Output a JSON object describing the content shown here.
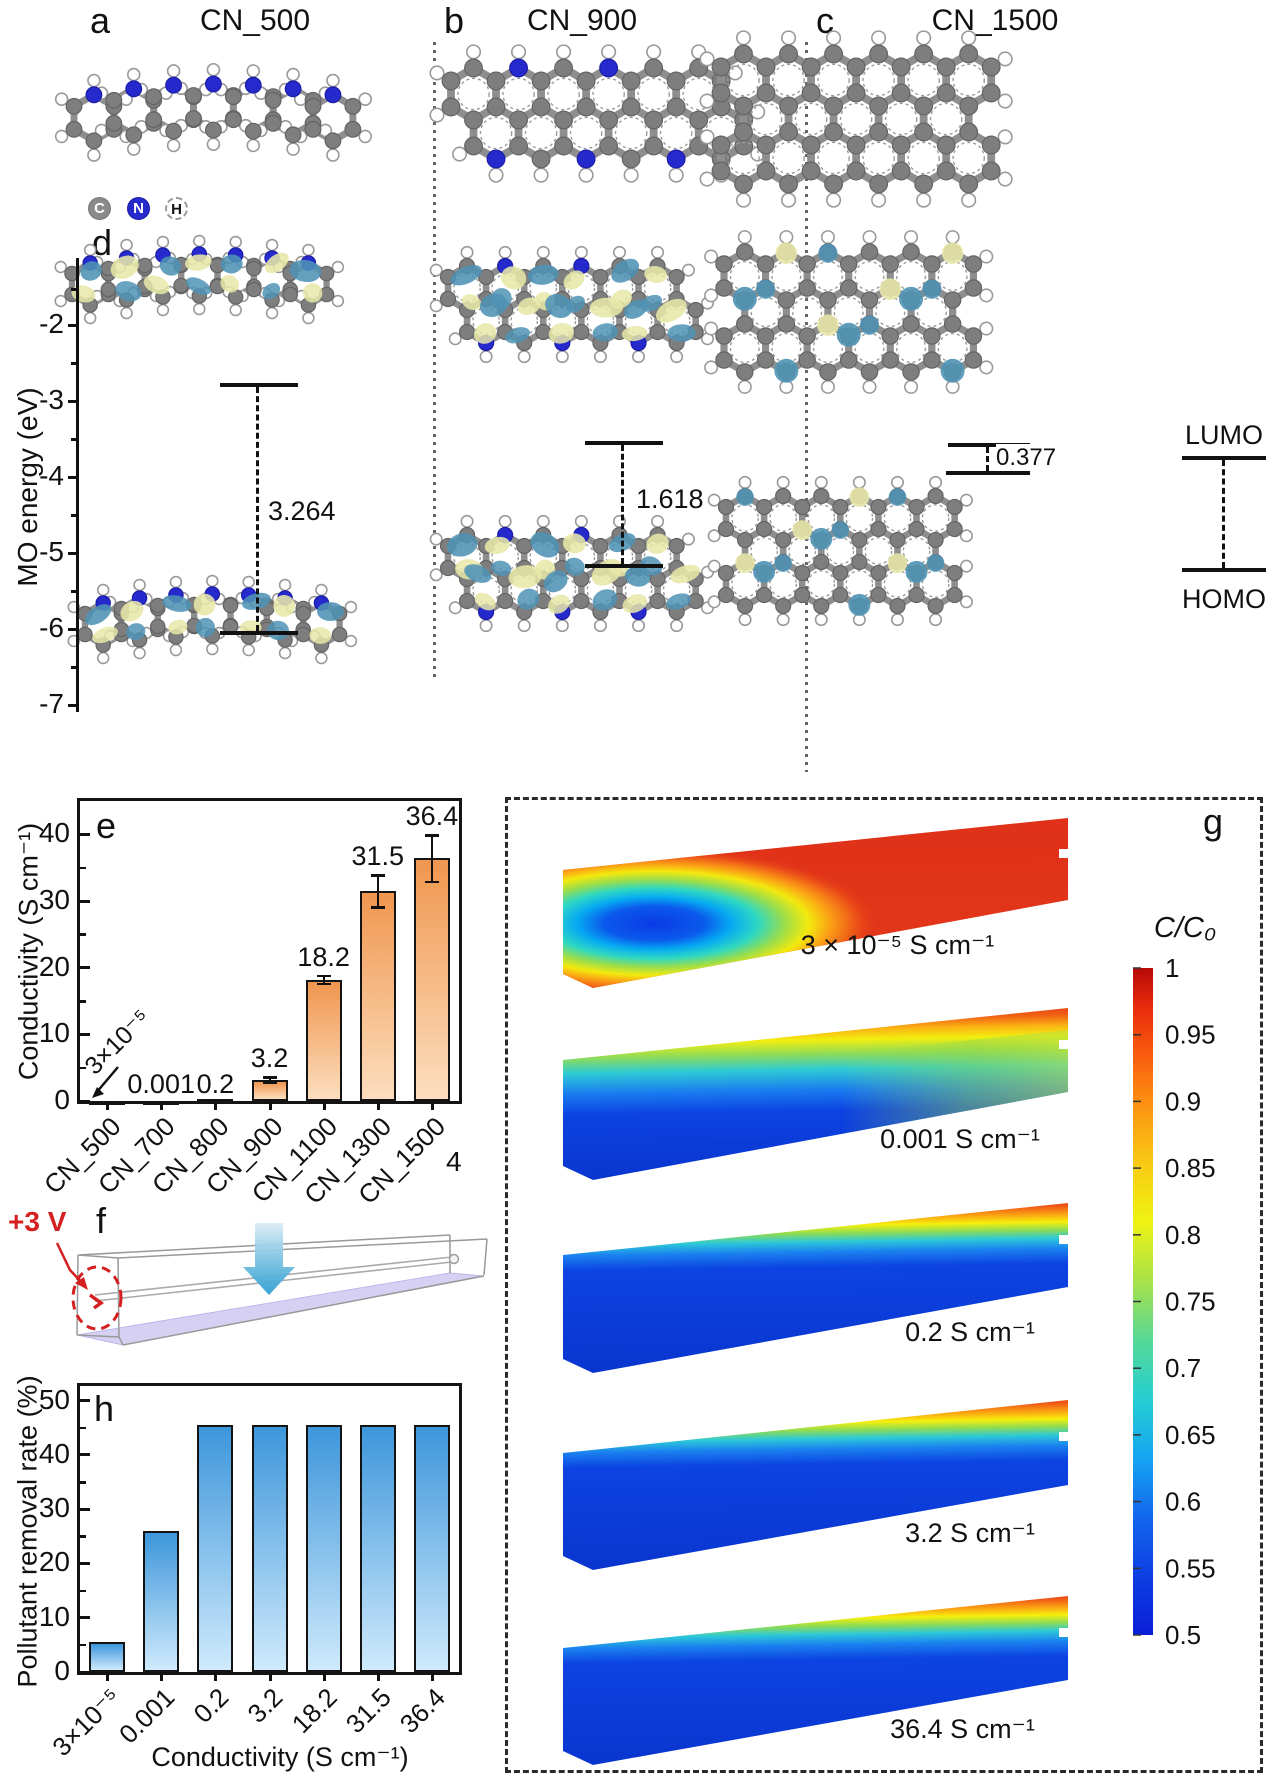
{
  "panels": {
    "a": {
      "label": "a",
      "title": "CN_500"
    },
    "b": {
      "label": "b",
      "title": "CN_900"
    },
    "c": {
      "label": "c",
      "title": "CN_1500"
    },
    "d": {
      "label": "d"
    },
    "e": {
      "label": "e"
    },
    "f": {
      "label": "f",
      "voltage": "+3 V"
    },
    "g": {
      "label": "g"
    },
    "h": {
      "label": "h"
    }
  },
  "legend": {
    "carbon": "C",
    "nitrogen": "N",
    "hydrogen": "H"
  },
  "colors": {
    "carbon": "#7e7e7e",
    "nitrogen": "#2629cc",
    "hydrogen": "#ffffff",
    "orbital_lobe_blue": "#4f93b5",
    "orbital_lobe_yellow": "#e7e7a9",
    "bar_orange_top": "#f0964f",
    "bar_orange_bottom": "#fcdebe",
    "bar_blue_top": "#3d96db",
    "bar_blue_bottom": "#cfeafc",
    "voltage_red": "#d42020"
  },
  "chart_data": [
    {
      "id": "conductivity-bar",
      "type": "bar",
      "panel": "e",
      "categories": [
        "CN_500",
        "CN_700",
        "CN_800",
        "CN_900",
        "CN_1100",
        "CN_1300",
        "CN_1500"
      ],
      "values": [
        3e-05,
        0.001,
        0.2,
        3.2,
        18.2,
        31.5,
        36.4
      ],
      "value_labels": [
        "3×10⁻⁵",
        "0.001",
        "0.2",
        "3.2",
        "18.2",
        "31.5",
        "36.4"
      ],
      "errors": [
        0,
        0,
        0,
        0.35,
        0.6,
        2.4,
        3.5
      ],
      "ylabel": "Conductivity (S cm⁻¹)",
      "yticks": [
        0,
        10,
        20,
        30,
        40
      ],
      "ylim": [
        0,
        45
      ],
      "stray_label": "4"
    },
    {
      "id": "removal-bar",
      "type": "bar",
      "panel": "h",
      "categories": [
        "3×10⁻⁵",
        "0.001",
        "0.2",
        "3.2",
        "18.2",
        "31.5",
        "36.4"
      ],
      "values": [
        5.5,
        26,
        45.5,
        45.5,
        45.5,
        45.5,
        45.5
      ],
      "xlabel": "Conductivity (S cm⁻¹)",
      "ylabel": "Pollutant removal rate (%)",
      "yticks": [
        0,
        10,
        20,
        30,
        40,
        50
      ],
      "ylim": [
        0,
        52.7
      ]
    },
    {
      "id": "mo-energy",
      "type": "energy-levels",
      "panel": "d",
      "ylabel": "MO energy (eV)",
      "yticks": [
        -2,
        -3,
        -4,
        -5,
        -6,
        -7
      ],
      "series": [
        {
          "name": "CN_500",
          "lumo_eV": -2.8,
          "homo_eV": -6.06,
          "gap_eV": 3.264,
          "gap_label": "3.264"
        },
        {
          "name": "CN_900",
          "lumo_eV": -3.55,
          "homo_eV": -5.17,
          "gap_eV": 1.618,
          "gap_label": "1.618"
        },
        {
          "name": "CN_1500",
          "lumo_eV": -3.62,
          "homo_eV": -4.0,
          "gap_eV": 0.377,
          "gap_label": "0.377"
        }
      ],
      "lumo_label": "LUMO",
      "homo_label": "HOMO"
    },
    {
      "id": "simulation-contours",
      "type": "contour-series",
      "panel": "g",
      "items": [
        "3 × 10⁻⁵ S cm⁻¹",
        "0.001 S cm⁻¹",
        "0.2 S cm⁻¹",
        "3.2 S cm⁻¹",
        "36.4 S cm⁻¹"
      ],
      "colorbar": {
        "title": "C/C₀",
        "ticks": [
          "1",
          "0.95",
          "0.9",
          "0.85",
          "0.8",
          "0.75",
          "0.7",
          "0.65",
          "0.6",
          "0.55",
          "0.5"
        ],
        "range": [
          0.5,
          1
        ]
      }
    }
  ]
}
